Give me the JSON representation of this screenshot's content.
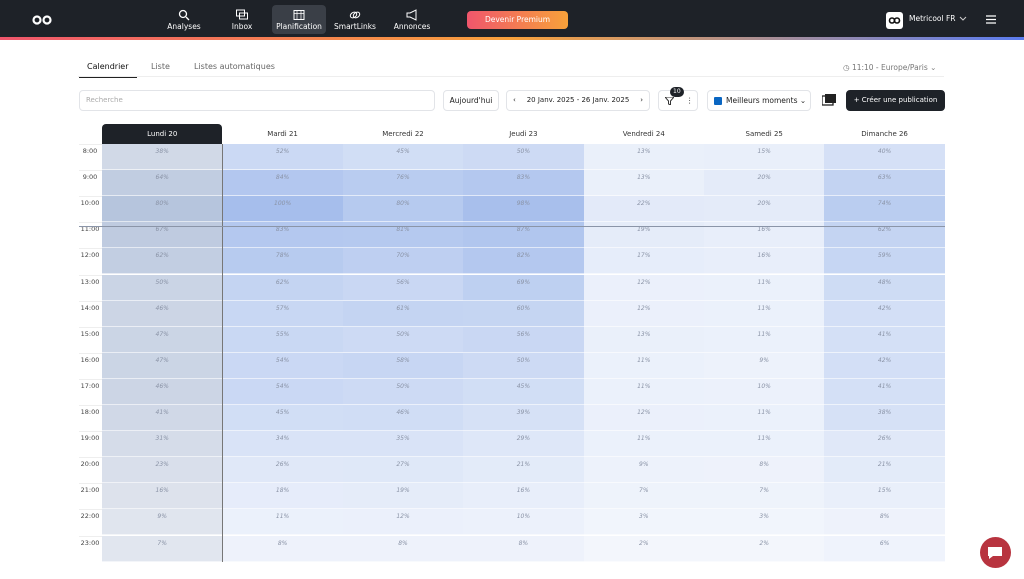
{
  "nav": {
    "items": [
      "Analyses",
      "Inbox",
      "Planification",
      "SmartLinks",
      "Annonces"
    ],
    "active": 2,
    "premium": "Devenir Premium",
    "account": "Metricool FR"
  },
  "tabs": {
    "items": [
      "Calendrier",
      "Liste",
      "Listes automatiques"
    ],
    "active": 0,
    "timezone": "11:10 - Europe/Paris"
  },
  "toolbar": {
    "search_placeholder": "Recherche",
    "today": "Aujourd'hui",
    "date_range": "20 Janv. 2025 - 26 Janv. 2025",
    "filter_count": "10",
    "view": "Meilleurs moments",
    "create": "Créer une publication"
  },
  "calendar": {
    "days": [
      "Lundi 20",
      "Mardi 21",
      "Mercredi 22",
      "Jeudi 23",
      "Vendredi 24",
      "Samedi 25",
      "Dimanche 26"
    ],
    "today_index": 0,
    "hours": [
      "8:00",
      "9:00",
      "10:00",
      "11:00",
      "12:00",
      "13:00",
      "14:00",
      "15:00",
      "16:00",
      "17:00",
      "18:00",
      "19:00",
      "20:00",
      "21:00",
      "22:00",
      "23:00"
    ],
    "rows": [
      [
        "38%",
        "52%",
        "45%",
        "50%",
        "13%",
        "15%",
        "40%"
      ],
      [
        "64%",
        "84%",
        "76%",
        "83%",
        "13%",
        "20%",
        "63%"
      ],
      [
        "80%",
        "100%",
        "80%",
        "98%",
        "22%",
        "20%",
        "74%"
      ],
      [
        "67%",
        "83%",
        "81%",
        "87%",
        "19%",
        "16%",
        "62%"
      ],
      [
        "62%",
        "78%",
        "70%",
        "82%",
        "17%",
        "16%",
        "59%"
      ],
      [
        "50%",
        "62%",
        "56%",
        "69%",
        "12%",
        "11%",
        "48%"
      ],
      [
        "46%",
        "57%",
        "61%",
        "60%",
        "12%",
        "11%",
        "42%"
      ],
      [
        "47%",
        "55%",
        "50%",
        "56%",
        "13%",
        "11%",
        "41%"
      ],
      [
        "47%",
        "54%",
        "58%",
        "50%",
        "11%",
        "9%",
        "42%"
      ],
      [
        "46%",
        "54%",
        "50%",
        "45%",
        "11%",
        "10%",
        "41%"
      ],
      [
        "41%",
        "45%",
        "46%",
        "39%",
        "12%",
        "11%",
        "38%"
      ],
      [
        "31%",
        "34%",
        "35%",
        "29%",
        "11%",
        "11%",
        "26%"
      ],
      [
        "23%",
        "26%",
        "27%",
        "21%",
        "9%",
        "8%",
        "21%"
      ],
      [
        "16%",
        "18%",
        "19%",
        "16%",
        "7%",
        "7%",
        "15%"
      ],
      [
        "9%",
        "11%",
        "12%",
        "10%",
        "3%",
        "3%",
        "8%"
      ],
      [
        "7%",
        "8%",
        "8%",
        "8%",
        "2%",
        "2%",
        "6%"
      ]
    ]
  }
}
